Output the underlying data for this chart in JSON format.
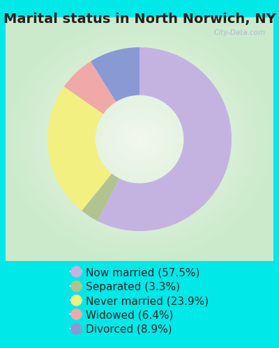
{
  "title": "Marital status in North Norwich, NY",
  "categories": [
    "Now married",
    "Separated",
    "Never married",
    "Widowed",
    "Divorced"
  ],
  "values": [
    57.5,
    3.3,
    23.9,
    6.4,
    8.9
  ],
  "colors": [
    "#c4b3e0",
    "#b0c490",
    "#f2f080",
    "#f0a8a8",
    "#8899d4"
  ],
  "legend_labels": [
    "Now married (57.5%)",
    "Separated (3.3%)",
    "Never married (23.9%)",
    "Widowed (6.4%)",
    "Divorced (8.9%)"
  ],
  "bg_outer": "#00e8e8",
  "title_color": "#222222",
  "title_fontsize": 14,
  "legend_fontsize": 11,
  "watermark": "City-Data.com"
}
